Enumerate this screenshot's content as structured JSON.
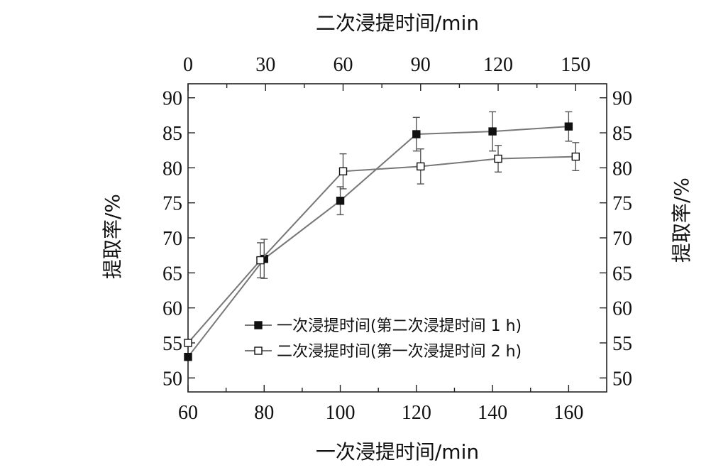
{
  "chart_data": {
    "type": "line",
    "x_bottom_label": "一次浸提时间/min",
    "x_top_label": "二次浸提时间/min",
    "y_left_label": "提取率/%",
    "y_right_label": "提取率/%",
    "x_bottom_range": [
      60,
      170
    ],
    "x_bottom_ticks": [
      "60",
      "80",
      "100",
      "120",
      "140",
      "160"
    ],
    "x_top_range": [
      0,
      162
    ],
    "x_top_ticks": [
      "0",
      "30",
      "60",
      "90",
      "120",
      "150"
    ],
    "y_range": [
      48,
      92
    ],
    "y_ticks": [
      "50",
      "55",
      "60",
      "65",
      "70",
      "75",
      "80",
      "85",
      "90"
    ],
    "grid": false,
    "legend_position": "lower-right",
    "series": [
      {
        "name": "一次浸提时间(第二次浸提时间 1 h)",
        "axis": "bottom",
        "marker": "filled-square",
        "x": [
          60,
          80,
          100,
          120,
          140,
          160
        ],
        "y": [
          53.0,
          67.0,
          75.3,
          84.8,
          85.2,
          85.9
        ],
        "err": [
          0,
          2.8,
          2.0,
          2.4,
          2.8,
          2.1
        ]
      },
      {
        "name": "二次浸提时间(第一次浸提时间 2 h)",
        "axis": "top",
        "marker": "open-square",
        "x": [
          0,
          28,
          60,
          90,
          120,
          150
        ],
        "y": [
          55.0,
          66.8,
          79.5,
          80.2,
          81.3,
          81.6
        ],
        "err": [
          0,
          2.5,
          2.5,
          2.5,
          1.9,
          2.0
        ]
      }
    ]
  }
}
